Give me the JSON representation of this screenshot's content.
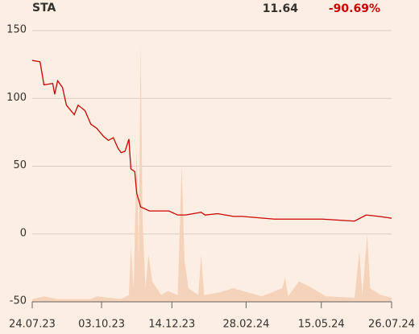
{
  "chart_data": {
    "type": "line",
    "title": "STA",
    "price": "11.64",
    "change": "-90.69%",
    "change_color": "#cc0000",
    "ylim": [
      -50,
      150
    ],
    "yticks": [
      -50,
      0,
      50,
      100,
      150
    ],
    "grid": true,
    "xlim": [
      "2023-07-24",
      "2024-07-26"
    ],
    "xticks": [
      {
        "value": "2023-07-24",
        "label": "24.07.23"
      },
      {
        "value": "2023-10-03",
        "label": "03.10.23"
      },
      {
        "value": "2023-12-14",
        "label": "14.12.23"
      },
      {
        "value": "2024-02-28",
        "label": "28.02.24"
      },
      {
        "value": "2024-05-15",
        "label": "15.05.24"
      },
      {
        "value": "2024-07-26",
        "label": "26.07.24"
      }
    ],
    "series": [
      {
        "kind": "area",
        "color": "#f5d2ba",
        "x": [
          "2023-07-24",
          "2023-08-05",
          "2023-08-19",
          "2023-09-22",
          "2023-09-28",
          "2023-10-23",
          "2023-10-31",
          "2023-11-02",
          "2023-11-05",
          "2023-11-08",
          "2023-11-10",
          "2023-11-12",
          "2023-11-14",
          "2023-11-17",
          "2023-11-20",
          "2023-11-24",
          "2023-12-03",
          "2023-12-10",
          "2023-12-20",
          "2023-12-24",
          "2023-12-27",
          "2023-12-31",
          "2024-01-10",
          "2024-01-13",
          "2024-01-16",
          "2024-02-01",
          "2024-02-15",
          "2024-03-15",
          "2024-04-05",
          "2024-04-08",
          "2024-04-11",
          "2024-04-22",
          "2024-05-01",
          "2024-05-20",
          "2024-06-18",
          "2024-06-23",
          "2024-06-26",
          "2024-07-01",
          "2024-07-04",
          "2024-07-15",
          "2024-07-26"
        ],
        "values": [
          -48,
          -46,
          -48,
          -48,
          -46,
          -48,
          -45,
          -10,
          -40,
          65,
          -20,
          140,
          10,
          -40,
          -15,
          -35,
          -45,
          -42,
          -45,
          50,
          -20,
          -40,
          -45,
          -15,
          -45,
          -43,
          -40,
          -46,
          -40,
          -32,
          -46,
          -35,
          -38,
          -46,
          -47,
          -13,
          -45,
          0,
          -40,
          -45,
          -47
        ]
      },
      {
        "kind": "line",
        "color": "#cc0000",
        "x": [
          "2023-07-24",
          "2023-08-01",
          "2023-08-05",
          "2023-08-14",
          "2023-08-16",
          "2023-08-19",
          "2023-08-24",
          "2023-08-28",
          "2023-09-05",
          "2023-09-09",
          "2023-09-16",
          "2023-09-22",
          "2023-09-28",
          "2023-10-05",
          "2023-10-10",
          "2023-10-15",
          "2023-10-20",
          "2023-10-23",
          "2023-10-27",
          "2023-10-31",
          "2023-11-02",
          "2023-11-06",
          "2023-11-08",
          "2023-11-12",
          "2023-11-21",
          "2023-12-03",
          "2023-12-11",
          "2023-12-20",
          "2023-12-28",
          "2024-01-13",
          "2024-01-17",
          "2024-01-30",
          "2024-02-15",
          "2024-02-24",
          "2024-03-28",
          "2024-04-21",
          "2024-05-16",
          "2024-06-18",
          "2024-06-30",
          "2024-07-13",
          "2024-07-26"
        ],
        "values": [
          128,
          127,
          110,
          111,
          103,
          113,
          108,
          95,
          88,
          95,
          91,
          81,
          78,
          72,
          69,
          71,
          63,
          60,
          61,
          70,
          48,
          46,
          30,
          20,
          17,
          17,
          17,
          14,
          14,
          16,
          14,
          15,
          13,
          13,
          11,
          11,
          11,
          9.5,
          14,
          13,
          11.64
        ]
      }
    ]
  }
}
